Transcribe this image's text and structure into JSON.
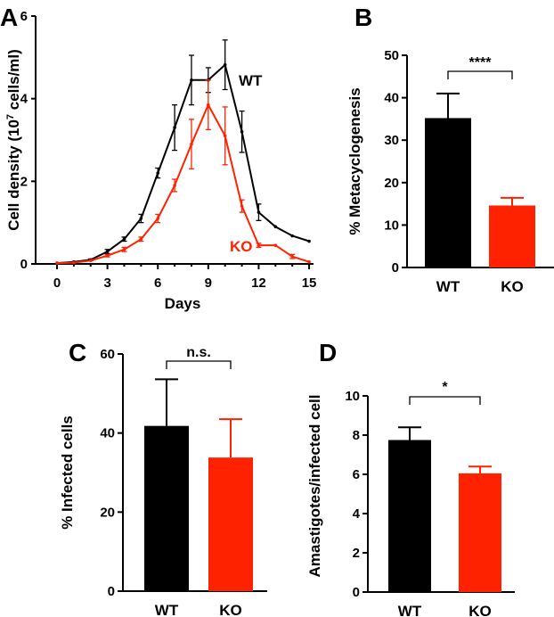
{
  "colors": {
    "wt": "#000000",
    "ko": "#ff2200",
    "axis": "#000000"
  },
  "chart_data": [
    {
      "panel": "A",
      "type": "line",
      "xlabel": "Days",
      "ylabel": "Cell density (10",
      "ylabel_sup": "7",
      "ylabel_end": " cells/ml)",
      "xlim": [
        -1,
        15.5
      ],
      "ylim": [
        0,
        6
      ],
      "xticks": [
        0,
        3,
        6,
        9,
        12,
        15
      ],
      "yticks": [
        0,
        2,
        4,
        6
      ],
      "x": [
        0,
        1,
        2,
        3,
        4,
        5,
        6,
        7,
        8,
        9,
        10,
        11,
        12,
        13,
        14,
        15
      ],
      "series": [
        {
          "name": "WT",
          "values": [
            0.02,
            0.05,
            0.1,
            0.3,
            0.6,
            1.1,
            2.2,
            3.3,
            4.45,
            4.45,
            4.82,
            3.2,
            1.25,
            0.9,
            0.68,
            0.55
          ],
          "errors": [
            0,
            0,
            0.02,
            0.05,
            0.05,
            0.1,
            0.12,
            0.55,
            0.6,
            0.3,
            0.6,
            0.5,
            0.2,
            0,
            0,
            0
          ]
        },
        {
          "name": "KO",
          "values": [
            0.02,
            0.03,
            0.08,
            0.2,
            0.35,
            0.6,
            1.1,
            1.9,
            2.9,
            3.85,
            3.1,
            1.4,
            0.45,
            0.45,
            0.18,
            0.05
          ],
          "errors": [
            0,
            0,
            0,
            0.03,
            0.05,
            0.05,
            0.1,
            0.15,
            0.6,
            0.6,
            0.7,
            0.15,
            0.05,
            0,
            0.05,
            0
          ]
        }
      ]
    },
    {
      "panel": "B",
      "type": "bar",
      "categories": [
        "WT",
        "KO"
      ],
      "values": [
        35.2,
        14.6
      ],
      "errors": [
        5.8,
        1.8
      ],
      "ylabel": "% Metacyclogenesis",
      "ylim": [
        0,
        50
      ],
      "yticks": [
        0,
        10,
        20,
        30,
        40,
        50
      ],
      "significance": "****"
    },
    {
      "panel": "C",
      "type": "bar",
      "categories": [
        "WT",
        "KO"
      ],
      "values": [
        41.8,
        33.8
      ],
      "errors": [
        11.8,
        9.7
      ],
      "ylabel": "% Infected cells",
      "ylim": [
        0,
        60
      ],
      "yticks": [
        0,
        20,
        40,
        60
      ],
      "significance": "n.s."
    },
    {
      "panel": "D",
      "type": "bar",
      "categories": [
        "WT",
        "KO"
      ],
      "values": [
        7.75,
        6.05
      ],
      "errors": [
        0.65,
        0.35
      ],
      "ylabel": "Amastigotes/infected cell",
      "ylim": [
        0,
        10
      ],
      "yticks": [
        0,
        2,
        4,
        6,
        8,
        10
      ],
      "significance": "*"
    }
  ]
}
